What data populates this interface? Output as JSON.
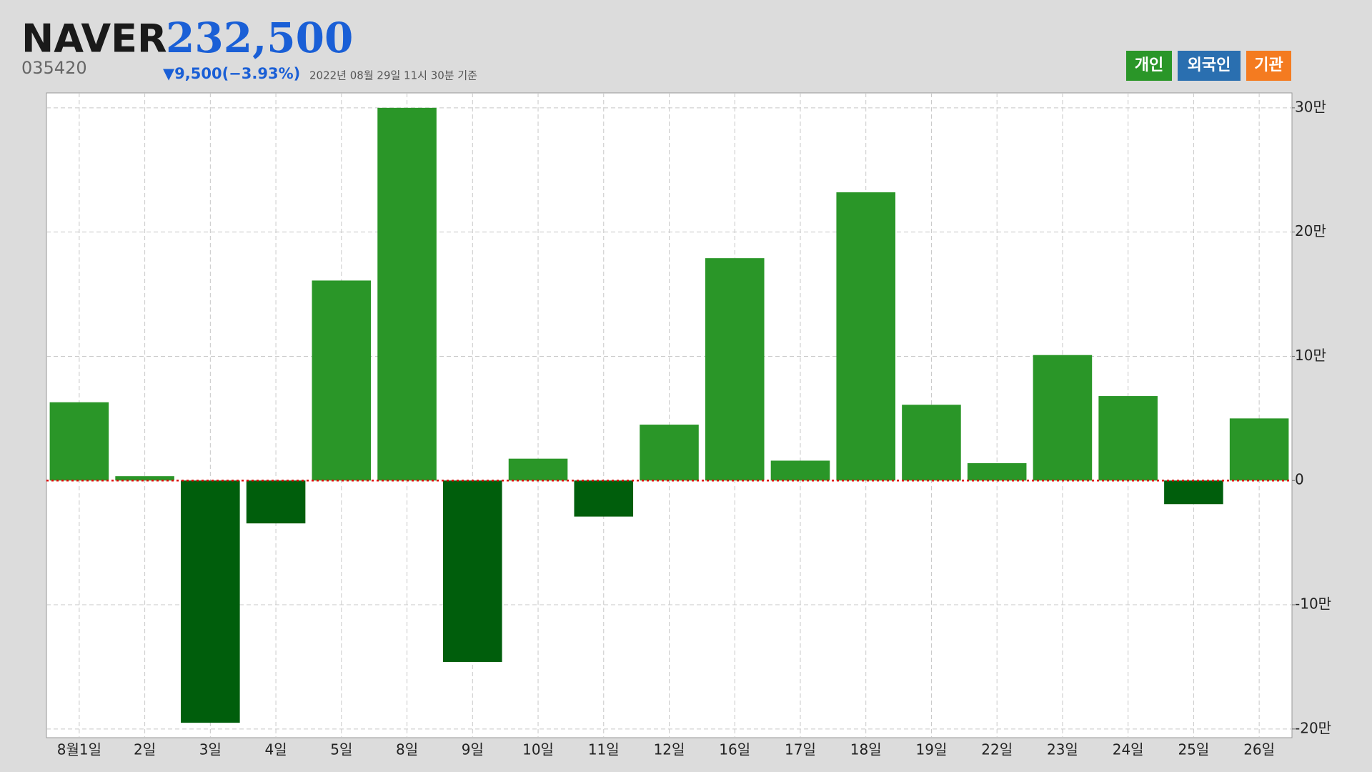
{
  "header": {
    "name": "NAVER",
    "price": "232,500",
    "code": "035420",
    "change": "▼9,500(−3.93%)",
    "timestamp": "2022년 08월 29일 11시 30분 기준"
  },
  "chart_data": {
    "type": "bar",
    "legend": [
      {
        "name": "개인",
        "color": "#2a9628"
      },
      {
        "name": "외국인",
        "color": "#2a6fb0"
      },
      {
        "name": "기관",
        "color": "#f47b20"
      }
    ],
    "categories": [
      "8월1일",
      "2일",
      "3일",
      "4일",
      "5일",
      "8일",
      "9일",
      "10일",
      "11일",
      "12일",
      "16일",
      "17일",
      "18일",
      "19일",
      "22일",
      "23일",
      "24일",
      "25일",
      "26일"
    ],
    "values": [
      63000,
      3500,
      -195000,
      -34500,
      161000,
      300000,
      -146000,
      17600,
      -29000,
      45000,
      179000,
      16000,
      232000,
      61000,
      14000,
      101000,
      68000,
      -19000,
      50000
    ],
    "color": "#2a9628",
    "negative_color": "#005e0c",
    "ylim": [
      -207000,
      312000
    ],
    "yticks": [
      {
        "value": -200000,
        "label": "-20만"
      },
      {
        "value": -100000,
        "label": "-10만"
      },
      0,
      {
        "value": 100000,
        "label": "10만"
      },
      {
        "value": 200000,
        "label": "20만"
      },
      {
        "value": 300000,
        "label": "30만"
      }
    ],
    "grid": true
  }
}
